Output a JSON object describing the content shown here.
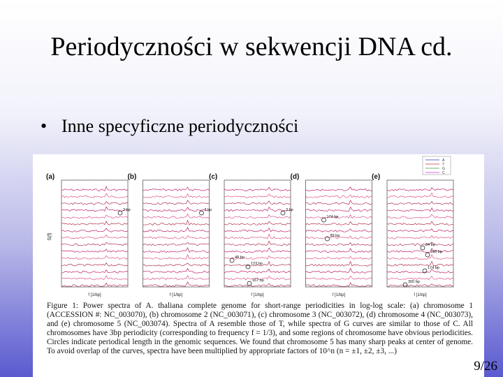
{
  "header": {
    "title": "Periodyczności w sekwencji DNA cd."
  },
  "bullets": [
    "Inne specyficzne periodyczności"
  ],
  "figure": {
    "y_label": "S(f)",
    "x_label": "f [1/bp]",
    "legend": [
      "A",
      "T",
      "G",
      "C"
    ],
    "panels": [
      {
        "label": "(a)",
        "annotations": [
          "3 bp"
        ]
      },
      {
        "label": "(b)",
        "annotations": [
          "3 bp"
        ]
      },
      {
        "label": "(c)",
        "annotations": [
          "3 bp",
          "48 bp",
          "123 bp",
          "167 bp"
        ]
      },
      {
        "label": "(d)",
        "annotations": [
          "174 bp",
          "89 bp"
        ]
      },
      {
        "label": "(e)",
        "annotations": [
          "84 bp",
          "165 bp",
          "174 bp",
          "300 bp"
        ]
      }
    ],
    "caption": "Figure 1: Power spectra of A. thaliana complete genome for short-range periodicities in log-log scale: (a) chromosome 1 (ACCESSION #: NC_003070), (b) chromosome 2 (NC_003071), (c) chromosome 3 (NC_003072), (d) chromosome 4 (NC_003073), and (e) chromosome 5 (NC_003074). Spectra of A resemble those of T, while spectra of G curves are similar to those of C. All chromosomes have 3bp periodicity (corresponding to frequency f = 1/3), and some regions of chromosome have obvious periodicities. Circles indicate periodical length in the genomic sequences. We found that chromosome 5 has many sharp peaks at center of genome. To avoid overlap of the curves, spectra have been multiplied by appropriate factors of 10^n (n = ±1, ±2, ±3, ...)"
  },
  "footer": {
    "page": "9/26"
  }
}
